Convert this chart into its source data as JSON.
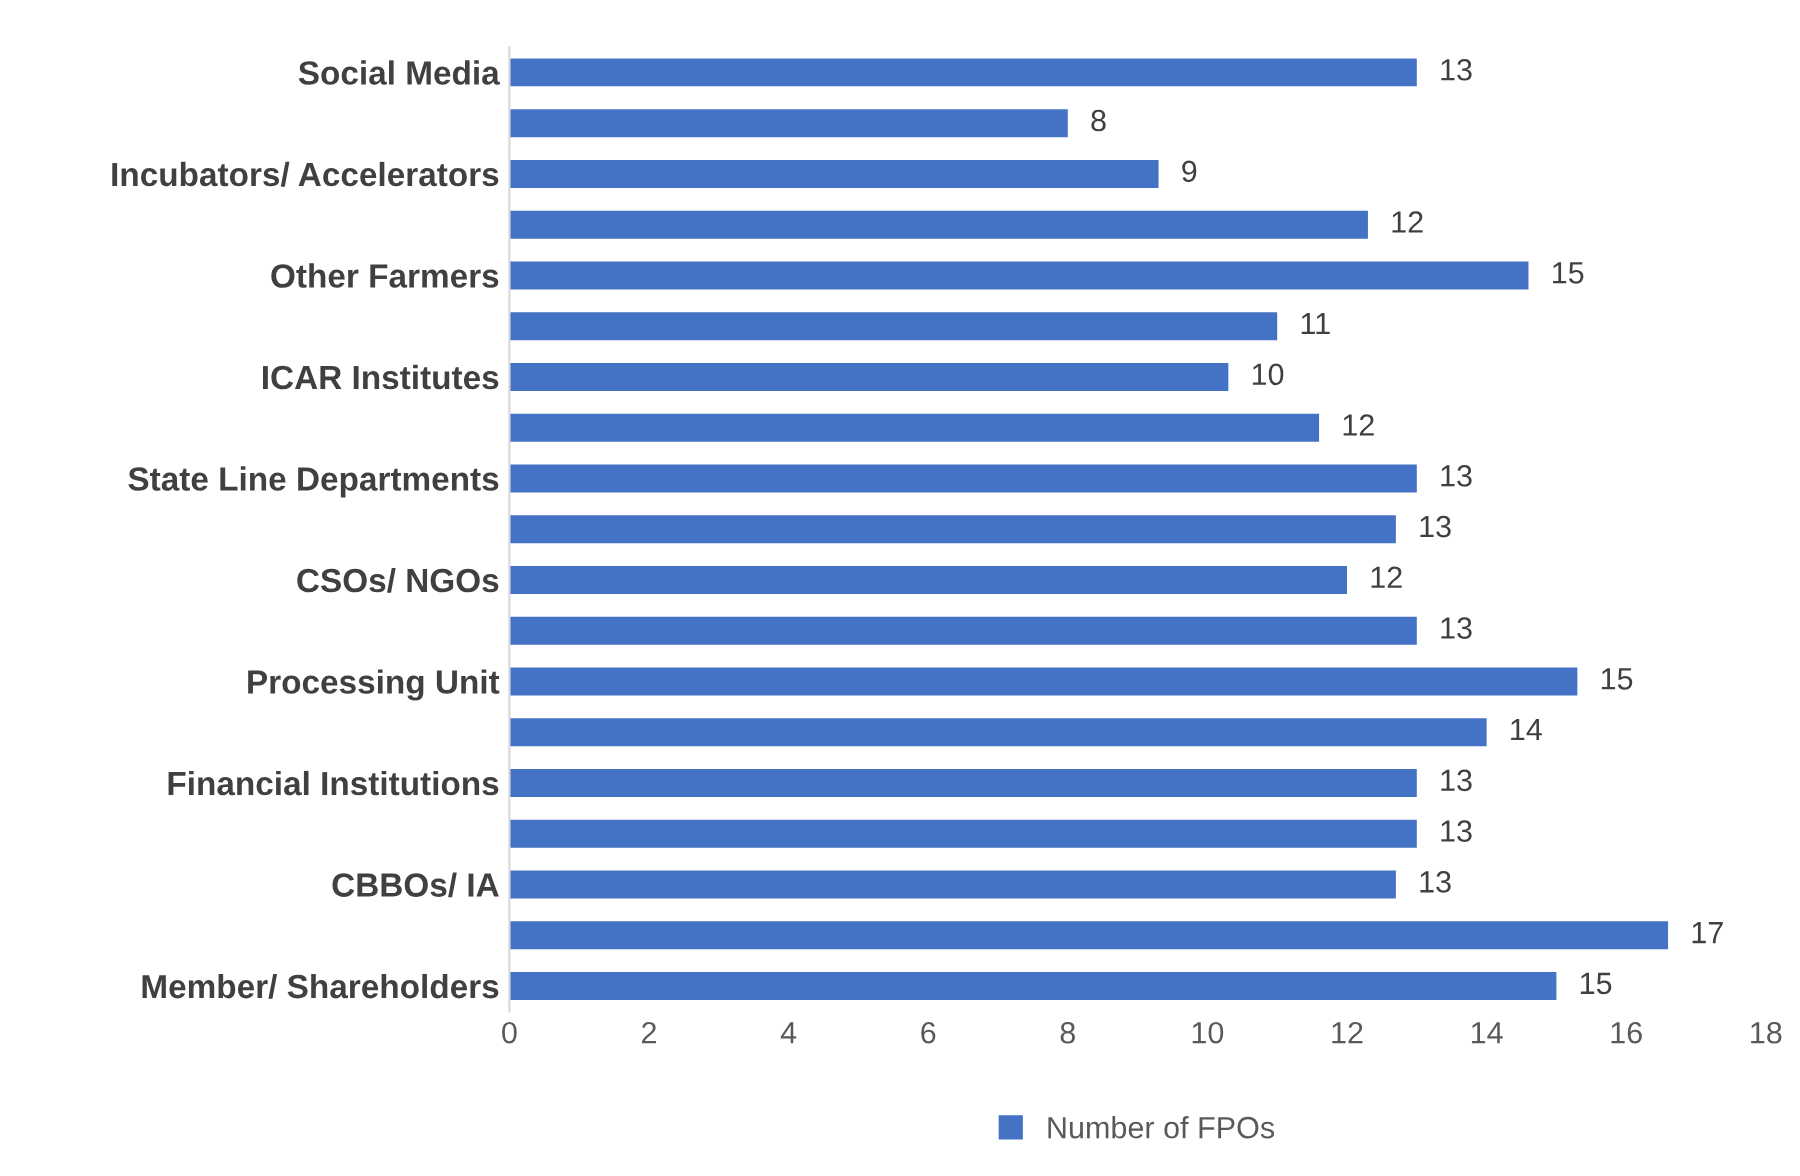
{
  "chart_data": {
    "type": "bar",
    "orientation": "horizontal",
    "categories": [
      "Social Media",
      null,
      "Incubators/ Accelerators",
      null,
      "Other Farmers",
      null,
      "ICAR Institutes",
      null,
      "State Line Departments",
      null,
      "CSOs/ NGOs",
      null,
      "Processing Unit",
      null,
      "Financial Institutions",
      null,
      "CBBOs/ IA",
      null,
      "Member/ Shareholders"
    ],
    "series": [
      {
        "name": "Number of FPOs",
        "color": "#4472c4",
        "values": [
          13,
          8,
          9.3,
          12.3,
          14.6,
          11,
          10.3,
          11.6,
          13,
          12.7,
          12,
          13,
          15.3,
          14,
          13,
          13,
          12.7,
          16.6,
          15
        ],
        "value_labels": [
          "13",
          "8",
          "9",
          "12",
          "15",
          "11",
          "10",
          "12",
          "13",
          "13",
          "12",
          "13",
          "15",
          "14",
          "13",
          "13",
          "13",
          "17",
          "15"
        ]
      }
    ],
    "xlim": [
      0,
      18
    ],
    "xticks": [
      0,
      2,
      4,
      6,
      8,
      10,
      12,
      14,
      16,
      18
    ],
    "grid": false,
    "legend": "bottom"
  }
}
